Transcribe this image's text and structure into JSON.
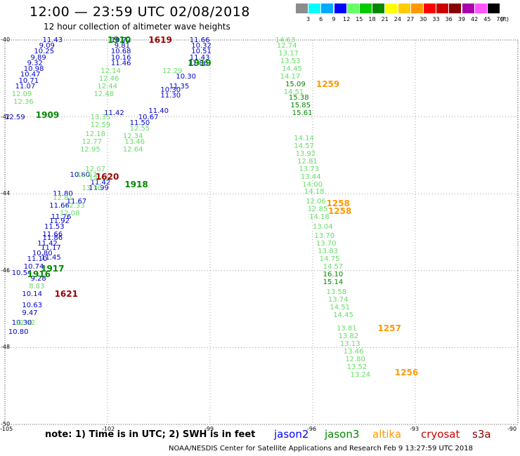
{
  "header": {
    "title": "12:00 — 23:59 UTC 02/08/2018",
    "subtitle": "12 hour collection of altimeter wave heights"
  },
  "color_scale": {
    "unit": "(ft)",
    "bins": [
      {
        "label": "3",
        "color": "#8c8c8c"
      },
      {
        "label": "6",
        "color": "#00ffff"
      },
      {
        "label": "9",
        "color": "#00aaff"
      },
      {
        "label": "12",
        "color": "#0000ff"
      },
      {
        "label": "15",
        "color": "#66ff66"
      },
      {
        "label": "18",
        "color": "#00cc00"
      },
      {
        "label": "21",
        "color": "#008800"
      },
      {
        "label": "24",
        "color": "#ffff00"
      },
      {
        "label": "27",
        "color": "#ffcc00"
      },
      {
        "label": "30",
        "color": "#ff9900"
      },
      {
        "label": "33",
        "color": "#ff0000"
      },
      {
        "label": "36",
        "color": "#cc0000"
      },
      {
        "label": "39",
        "color": "#880000"
      },
      {
        "label": "42",
        "color": "#aa00aa"
      },
      {
        "label": "45",
        "color": "#ff55ff"
      },
      {
        "label": "70",
        "color": "#000000"
      }
    ]
  },
  "axes": {
    "lon_ticks": [
      "-105",
      "-102",
      "-99",
      "-96",
      "-93",
      "-90"
    ],
    "lat_ticks": [
      "-40",
      "-42",
      "-44",
      "-46",
      "-48",
      "-50"
    ]
  },
  "tracks": [
    {
      "series": "jason2",
      "points": [
        [
          "11.43",
          -103.9,
          -40.0
        ],
        [
          "9.09",
          -104.0,
          -40.15
        ],
        [
          "10.25",
          -104.15,
          -40.3
        ],
        [
          "9.89",
          -104.25,
          -40.45
        ],
        [
          "9.32",
          -104.35,
          -40.6
        ],
        [
          "10.98",
          -104.45,
          -40.75
        ],
        [
          "10.47",
          -104.55,
          -40.9
        ],
        [
          "10.71",
          -104.6,
          -41.05
        ],
        [
          "11.07",
          -104.7,
          -41.2
        ],
        [
          "12.59",
          -105.0,
          -42.0
        ],
        [
          "11.80",
          -103.6,
          -44.0
        ],
        [
          "11.67",
          -103.2,
          -44.2
        ],
        [
          "11.66",
          -103.7,
          -44.3
        ],
        [
          "11.76",
          -103.65,
          -44.6
        ],
        [
          "11.92",
          -103.7,
          -44.7
        ],
        [
          "11.53",
          -103.85,
          -44.85
        ],
        [
          "11.66",
          -103.9,
          -45.05
        ],
        [
          "11.86",
          -103.9,
          -45.15
        ],
        [
          "11.42",
          -104.05,
          -45.3
        ],
        [
          "11.17",
          -103.95,
          -45.4
        ],
        [
          "10.80",
          -104.2,
          -45.55
        ],
        [
          "11.45",
          -103.95,
          -45.65
        ],
        [
          "11.10",
          -104.35,
          -45.7
        ],
        [
          "10.74",
          -104.45,
          -45.9
        ],
        [
          "10.54",
          -104.8,
          -46.05
        ],
        [
          "9.28",
          -104.25,
          -46.2
        ],
        [
          "10.14",
          -104.5,
          -46.6
        ],
        [
          "10.63",
          -104.5,
          -46.9
        ],
        [
          "9.47",
          -104.5,
          -47.1
        ],
        [
          "10.72",
          -101.9,
          -40.0
        ],
        [
          "9.81",
          -101.8,
          -40.15
        ],
        [
          "10.68",
          -101.9,
          -40.3
        ],
        [
          "10.16",
          -101.9,
          -40.45
        ],
        [
          "11.46",
          -101.9,
          -40.6
        ],
        [
          "11.42",
          -102.1,
          -41.9
        ],
        [
          "10.80",
          -103.1,
          -43.5
        ],
        [
          "11.99",
          -102.55,
          -43.85
        ],
        [
          "11.42",
          -102.5,
          -43.7
        ],
        [
          "11.66",
          -99.6,
          -40.0
        ],
        [
          "10.32",
          -99.55,
          -40.15
        ],
        [
          "10.51",
          -99.55,
          -40.3
        ],
        [
          "11.43",
          -99.6,
          -40.45
        ],
        [
          "11.86",
          -99.65,
          -40.6
        ],
        [
          "10.30",
          -100.0,
          -40.95
        ],
        [
          "11.35",
          -100.2,
          -41.2
        ],
        [
          "10.30",
          -100.45,
          -41.3
        ],
        [
          "11.30",
          -100.45,
          -41.45
        ],
        [
          "11.40",
          -100.8,
          -41.85
        ],
        [
          "10.67",
          -101.1,
          -42.0
        ],
        [
          "11.50",
          -101.35,
          -42.15
        ],
        [
          "10.80",
          -104.9,
          -47.6
        ],
        [
          "10.30",
          -104.8,
          -47.35
        ]
      ]
    },
    {
      "series": "light",
      "points": [
        [
          "12.09",
          -104.8,
          -41.4
        ],
        [
          "12.36",
          -104.75,
          -41.6
        ],
        [
          "12.14",
          -102.2,
          -40.8
        ],
        [
          "12.46",
          -102.25,
          -41.0
        ],
        [
          "12.44",
          -102.3,
          -41.2
        ],
        [
          "12.48",
          -102.4,
          -41.4
        ],
        [
          "13.35",
          -102.5,
          -42.0
        ],
        [
          "12.59",
          -102.5,
          -42.2
        ],
        [
          "12.18",
          -102.65,
          -42.45
        ],
        [
          "12.77",
          -102.75,
          -42.65
        ],
        [
          "12.95",
          -102.8,
          -42.85
        ],
        [
          "12.07",
          -102.65,
          -43.35
        ],
        [
          "12.53",
          -102.9,
          -43.5
        ],
        [
          "12.49",
          -102.55,
          -43.6
        ],
        [
          "13.30",
          -102.75,
          -43.85
        ],
        [
          "12.81",
          -103.6,
          -44.1
        ],
        [
          "12.33",
          -103.25,
          -44.3
        ],
        [
          "12.08",
          -103.4,
          -44.5
        ],
        [
          "12.29",
          -100.4,
          -40.8
        ],
        [
          "12.55",
          -101.35,
          -42.3
        ],
        [
          "12.34",
          -101.55,
          -42.5
        ],
        [
          "13.46",
          -101.5,
          -42.65
        ],
        [
          "12.64",
          -101.55,
          -42.85
        ],
        [
          "8.83",
          -104.3,
          -46.4
        ],
        [
          "12.02",
          -104.7,
          -47.35
        ],
        [
          "14.63",
          -97.1,
          -40.0
        ],
        [
          "12.74",
          -97.05,
          -40.15
        ],
        [
          "13.17",
          -97.0,
          -40.35
        ],
        [
          "13.53",
          -96.95,
          -40.55
        ],
        [
          "14.45",
          -96.9,
          -40.75
        ],
        [
          "14.17",
          -96.95,
          -40.95
        ],
        [
          "14.51",
          -96.85,
          -41.35
        ],
        [
          "14.14",
          -96.55,
          -42.55
        ],
        [
          "14.57",
          -96.55,
          -42.75
        ],
        [
          "13.92",
          -96.5,
          -42.95
        ],
        [
          "12.81",
          -96.45,
          -43.15
        ],
        [
          "13.73",
          -96.4,
          -43.35
        ],
        [
          "13.44",
          -96.35,
          -43.55
        ],
        [
          "14.00",
          -96.3,
          -43.75
        ],
        [
          "14.18",
          -96.25,
          -43.95
        ],
        [
          "12.06",
          -96.2,
          -44.2
        ],
        [
          "12.85",
          -96.15,
          -44.4
        ],
        [
          "14.18",
          -96.1,
          -44.6
        ],
        [
          "13.04",
          -96.0,
          -44.85
        ],
        [
          "13.70",
          -95.95,
          -45.1
        ],
        [
          "13.70",
          -95.9,
          -45.3
        ],
        [
          "13.83",
          -95.85,
          -45.5
        ],
        [
          "14.75",
          -95.8,
          -45.7
        ],
        [
          "14.57",
          -95.7,
          -45.9
        ],
        [
          "13.58",
          -95.6,
          -46.55
        ],
        [
          "13.74",
          -95.55,
          -46.75
        ],
        [
          "14.51",
          -95.5,
          -46.95
        ],
        [
          "14.45",
          -95.4,
          -47.15
        ],
        [
          "13.81",
          -95.3,
          -47.5
        ],
        [
          "13.82",
          -95.25,
          -47.7
        ],
        [
          "13.13",
          -95.2,
          -47.9
        ],
        [
          "13.46",
          -95.1,
          -48.1
        ],
        [
          "12.80",
          -95.05,
          -48.3
        ],
        [
          "13.52",
          -95.0,
          -48.5
        ],
        [
          "13.24",
          -94.9,
          -48.7
        ]
      ]
    },
    {
      "series": "jason3",
      "points": [
        [
          "15.09",
          -96.8,
          -41.15
        ],
        [
          "15.38",
          -96.7,
          -41.5
        ],
        [
          "15.85",
          -96.65,
          -41.7
        ],
        [
          "15.61",
          -96.6,
          -41.9
        ],
        [
          "16.10",
          -95.7,
          -46.1
        ],
        [
          "15.14",
          -95.7,
          -46.3
        ]
      ]
    }
  ],
  "rev_labels": [
    {
      "text": "1910",
      "series": "jason3",
      "lon": -102.0,
      "lat": -40.0
    },
    {
      "text": "1619",
      "series": "cryosat",
      "lon": -100.8,
      "lat": -40.0
    },
    {
      "text": "1919",
      "series": "jason3",
      "lon": -99.65,
      "lat": -40.6
    },
    {
      "text": "1909",
      "series": "jason3",
      "lon": -104.1,
      "lat": -41.95
    },
    {
      "text": "1620",
      "series": "cryosat",
      "lon": -102.35,
      "lat": -43.55
    },
    {
      "text": "1918",
      "series": "jason3",
      "lon": -101.5,
      "lat": -43.75
    },
    {
      "text": "1916",
      "series": "jason3",
      "lon": -104.35,
      "lat": -46.1
    },
    {
      "text": "1917",
      "series": "jason3",
      "lon": -103.95,
      "lat": -45.95
    },
    {
      "text": "1621",
      "series": "cryosat",
      "lon": -103.55,
      "lat": -46.6
    },
    {
      "text": "1259",
      "series": "altika",
      "lon": -95.9,
      "lat": -41.15
    },
    {
      "text": "1258",
      "series": "altika",
      "lon": -95.6,
      "lat": -44.25
    },
    {
      "text": "1258",
      "series": "altika",
      "lon": -95.55,
      "lat": -44.45
    },
    {
      "text": "1257",
      "series": "altika",
      "lon": -94.1,
      "lat": -47.5
    },
    {
      "text": "1256",
      "series": "altika",
      "lon": -93.6,
      "lat": -48.65
    }
  ],
  "legend": {
    "note": "note:  1) Time is in UTC; 2) SWH is in feet",
    "missions": [
      {
        "name": "jason2",
        "color": "#0000ff"
      },
      {
        "name": "jason3",
        "color": "#008800"
      },
      {
        "name": "altika",
        "color": "#ff9900"
      },
      {
        "name": "cryosat",
        "color": "#cc0000"
      },
      {
        "name": "s3a",
        "color": "#880000"
      }
    ]
  },
  "series_colors": {
    "jason2": "#0000cc",
    "light": "#66dd66",
    "jason3": "#008800",
    "altika": "#ff9900",
    "cryosat": "#990000"
  },
  "credit": "NOAA/NESDIS Center for Satellite Applications and Research    Feb  9 13:27:59 UTC 2018"
}
